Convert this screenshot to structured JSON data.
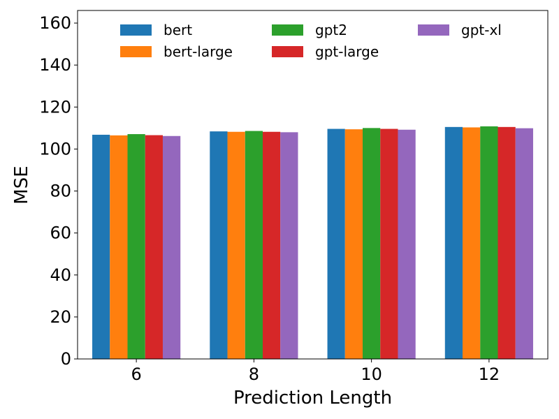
{
  "chart_data": {
    "type": "bar",
    "title": "",
    "xlabel": "Prediction Length",
    "ylabel": "MSE",
    "categories": [
      "6",
      "8",
      "10",
      "12"
    ],
    "ylim": [
      0,
      166
    ],
    "yticks": [
      0,
      20,
      40,
      60,
      80,
      100,
      120,
      140,
      160
    ],
    "legend_position": "top",
    "grid": false,
    "series": [
      {
        "name": "bert",
        "color": "#1f77b4",
        "values": [
          106.8,
          108.4,
          109.6,
          110.5
        ]
      },
      {
        "name": "bert-large",
        "color": "#ff7f0e",
        "values": [
          106.5,
          108.2,
          109.4,
          110.3
        ]
      },
      {
        "name": "gpt2",
        "color": "#2ca02c",
        "values": [
          107.1,
          108.6,
          110.0,
          110.8
        ]
      },
      {
        "name": "gpt-large",
        "color": "#d62728",
        "values": [
          106.6,
          108.2,
          109.6,
          110.5
        ]
      },
      {
        "name": "gpt-xl",
        "color": "#9467bd",
        "values": [
          106.2,
          108.0,
          109.2,
          109.9
        ]
      }
    ]
  }
}
